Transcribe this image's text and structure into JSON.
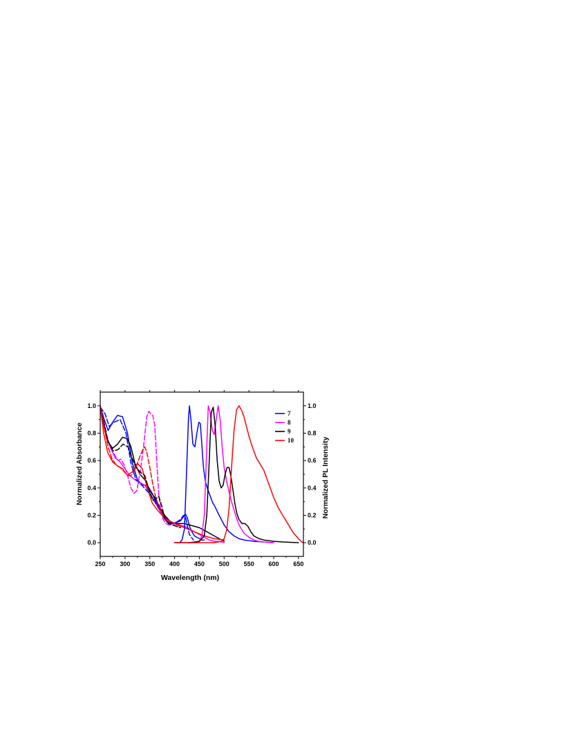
{
  "chart_data": {
    "type": "line",
    "xlabel": "Wavelength (nm)",
    "ylabel": "Normalized Absorbance",
    "y2label": "Normalized PL Intensity",
    "xlim": [
      250,
      660
    ],
    "ylim": [
      -0.1,
      1.1
    ],
    "x_ticks": [
      250,
      300,
      350,
      400,
      450,
      500,
      550,
      600,
      650
    ],
    "x_tick_labels": [
      "250",
      "300",
      "350",
      "400",
      "450",
      "500",
      "550",
      "600",
      "650"
    ],
    "y_ticks": [
      0.0,
      0.2,
      0.4,
      0.6,
      0.8,
      1.0
    ],
    "y_tick_labels": [
      "0.0",
      "0.2",
      "0.4",
      "0.6",
      "0.8",
      "1.0"
    ],
    "legend_position": "top-right",
    "grid": false,
    "series": [
      {
        "name": "7",
        "color": "#0000ff",
        "kind": "absorbance-solid",
        "x": [
          250,
          258,
          266,
          275,
          285,
          295,
          305,
          315,
          325,
          335,
          345,
          355,
          365,
          375,
          385,
          395,
          405,
          412,
          418,
          422,
          426,
          430,
          435,
          440,
          445,
          450,
          455,
          460
        ],
        "y": [
          1.0,
          0.9,
          0.82,
          0.88,
          0.93,
          0.92,
          0.8,
          0.58,
          0.46,
          0.42,
          0.42,
          0.36,
          0.28,
          0.2,
          0.15,
          0.14,
          0.15,
          0.16,
          0.19,
          0.21,
          0.18,
          0.12,
          0.08,
          0.05,
          0.04,
          0.03,
          0.02,
          0.02
        ]
      },
      {
        "name": "8",
        "color": "#ff00ff",
        "kind": "absorbance-solid",
        "x": [
          250,
          256,
          262,
          270,
          280,
          290,
          300,
          310,
          320,
          330,
          340,
          350,
          360,
          370,
          380,
          390,
          400,
          410,
          420,
          430,
          440,
          450,
          460,
          470,
          480,
          490,
          500
        ],
        "y": [
          1.0,
          0.9,
          0.79,
          0.7,
          0.62,
          0.59,
          0.54,
          0.49,
          0.46,
          0.44,
          0.42,
          0.36,
          0.3,
          0.24,
          0.18,
          0.15,
          0.14,
          0.13,
          0.12,
          0.1,
          0.08,
          0.06,
          0.04,
          0.02,
          0.01,
          0.01,
          0.0
        ]
      },
      {
        "name": "9",
        "color": "#000000",
        "kind": "absorbance-solid",
        "x": [
          250,
          257,
          265,
          275,
          285,
          295,
          305,
          312,
          320,
          330,
          340,
          350,
          360,
          370,
          380,
          390,
          400,
          410,
          420,
          430,
          440,
          450,
          460,
          470,
          480,
          490,
          500
        ],
        "y": [
          0.98,
          0.86,
          0.74,
          0.69,
          0.72,
          0.77,
          0.76,
          0.7,
          0.58,
          0.5,
          0.46,
          0.38,
          0.33,
          0.26,
          0.2,
          0.16,
          0.14,
          0.14,
          0.14,
          0.13,
          0.12,
          0.11,
          0.09,
          0.07,
          0.05,
          0.03,
          0.01
        ]
      },
      {
        "name": "10",
        "color": "#ff0000",
        "kind": "absorbance-solid",
        "x": [
          250,
          257,
          265,
          275,
          285,
          295,
          305,
          315,
          325,
          335,
          345,
          355,
          365,
          375,
          385,
          395,
          405,
          420,
          440,
          460,
          480,
          500
        ],
        "y": [
          0.99,
          0.8,
          0.66,
          0.59,
          0.56,
          0.54,
          0.49,
          0.52,
          0.58,
          0.54,
          0.4,
          0.29,
          0.24,
          0.2,
          0.17,
          0.15,
          0.13,
          0.11,
          0.08,
          0.05,
          0.03,
          0.02
        ]
      },
      {
        "name": "7-dashed",
        "color": "#0000ff",
        "kind": "absorbance-dashed",
        "x": [
          250,
          260,
          268,
          278,
          290,
          302,
          312,
          322,
          334,
          344,
          352,
          360,
          368,
          378,
          388,
          396,
          404,
          412,
          418,
          422,
          426,
          430,
          438
        ],
        "y": [
          0.99,
          0.94,
          0.85,
          0.88,
          0.9,
          0.8,
          0.58,
          0.46,
          0.42,
          0.38,
          0.35,
          0.3,
          0.25,
          0.2,
          0.15,
          0.14,
          0.15,
          0.17,
          0.2,
          0.19,
          0.12,
          0.06,
          0.02
        ]
      },
      {
        "name": "8-dashed",
        "color": "#ff00ff",
        "kind": "absorbance-dashed",
        "x": [
          250,
          258,
          266,
          276,
          286,
          292,
          298,
          306,
          312,
          318,
          324,
          332,
          338,
          344,
          348,
          352,
          356,
          360,
          364,
          368,
          372,
          376,
          382,
          390,
          398,
          404,
          412
        ],
        "y": [
          0.99,
          0.86,
          0.74,
          0.66,
          0.6,
          0.61,
          0.57,
          0.48,
          0.4,
          0.36,
          0.38,
          0.55,
          0.72,
          0.92,
          0.96,
          0.94,
          0.93,
          0.86,
          0.6,
          0.36,
          0.24,
          0.18,
          0.14,
          0.13,
          0.13,
          0.12,
          0.11
        ]
      },
      {
        "name": "9-dashed",
        "color": "#000000",
        "kind": "absorbance-dashed",
        "x": [
          250,
          258,
          266,
          276,
          286,
          296,
          306,
          314,
          322,
          330,
          336,
          340,
          344,
          350,
          356,
          362,
          368,
          374,
          380,
          388,
          396,
          404,
          412
        ],
        "y": [
          0.99,
          0.87,
          0.74,
          0.67,
          0.68,
          0.72,
          0.7,
          0.62,
          0.55,
          0.52,
          0.5,
          0.49,
          0.44,
          0.37,
          0.31,
          0.32,
          0.34,
          0.27,
          0.18,
          0.14,
          0.13,
          0.12,
          0.11
        ]
      },
      {
        "name": "10-dashed",
        "color": "#ff0000",
        "kind": "absorbance-dashed",
        "x": [
          250,
          258,
          266,
          274,
          282,
          290,
          298,
          306,
          312,
          318,
          324,
          330,
          336,
          340,
          344,
          350,
          356,
          362,
          370,
          378,
          386,
          394,
          402,
          410
        ],
        "y": [
          0.99,
          0.84,
          0.7,
          0.61,
          0.57,
          0.55,
          0.52,
          0.49,
          0.49,
          0.52,
          0.57,
          0.63,
          0.68,
          0.7,
          0.66,
          0.55,
          0.43,
          0.33,
          0.25,
          0.19,
          0.16,
          0.15,
          0.14,
          0.13
        ]
      },
      {
        "name": "7-PL",
        "color": "#0000ff",
        "kind": "emission",
        "x": [
          400,
          410,
          415,
          420,
          425,
          428,
          430,
          433,
          437,
          441,
          445,
          449,
          452,
          455,
          458,
          462,
          466,
          470,
          476,
          482,
          490,
          500,
          510,
          520,
          530,
          540,
          550,
          560,
          570,
          580,
          590,
          600
        ],
        "y": [
          0.0,
          0.0,
          0.02,
          0.1,
          0.6,
          0.9,
          1.0,
          0.9,
          0.72,
          0.7,
          0.8,
          0.88,
          0.87,
          0.72,
          0.56,
          0.45,
          0.4,
          0.36,
          0.3,
          0.26,
          0.2,
          0.13,
          0.08,
          0.05,
          0.03,
          0.02,
          0.015,
          0.01,
          0.008,
          0.005,
          0.003,
          0.0
        ]
      },
      {
        "name": "8-PL",
        "color": "#ff00ff",
        "kind": "emission",
        "x": [
          400,
          420,
          440,
          450,
          455,
          460,
          464,
          468,
          472,
          476,
          480,
          484,
          488,
          492,
          496,
          500,
          505,
          510,
          515,
          520,
          525,
          530,
          540,
          550,
          560,
          570,
          580,
          590,
          600
        ],
        "y": [
          0.0,
          0.0,
          0.0,
          0.01,
          0.05,
          0.2,
          0.6,
          1.0,
          0.95,
          0.82,
          0.79,
          0.9,
          1.0,
          0.9,
          0.7,
          0.55,
          0.45,
          0.37,
          0.3,
          0.24,
          0.18,
          0.13,
          0.07,
          0.04,
          0.02,
          0.01,
          0.005,
          0.002,
          0.0
        ]
      },
      {
        "name": "9-PL",
        "color": "#000000",
        "kind": "emission",
        "x": [
          400,
          430,
          450,
          460,
          465,
          470,
          474,
          478,
          482,
          486,
          490,
          494,
          498,
          502,
          506,
          510,
          514,
          518,
          522,
          526,
          530,
          536,
          542,
          548,
          554,
          560,
          570,
          580,
          600,
          620,
          650
        ],
        "y": [
          0.0,
          0.0,
          0.01,
          0.05,
          0.2,
          0.6,
          0.95,
          0.99,
          0.85,
          0.6,
          0.45,
          0.4,
          0.42,
          0.5,
          0.55,
          0.55,
          0.48,
          0.38,
          0.28,
          0.21,
          0.17,
          0.14,
          0.14,
          0.12,
          0.08,
          0.05,
          0.03,
          0.02,
          0.01,
          0.005,
          0.0
        ]
      },
      {
        "name": "10-PL",
        "color": "#ff0000",
        "kind": "emission",
        "x": [
          400,
          450,
          480,
          495,
          500,
          505,
          510,
          515,
          520,
          525,
          530,
          535,
          540,
          545,
          550,
          555,
          560,
          565,
          570,
          575,
          580,
          585,
          590,
          595,
          600,
          605,
          610,
          615,
          620,
          625,
          630,
          635,
          640,
          645,
          650,
          655,
          660
        ],
        "y": [
          0.0,
          0.0,
          0.0,
          0.01,
          0.03,
          0.09,
          0.25,
          0.55,
          0.82,
          0.97,
          1.0,
          0.97,
          0.92,
          0.85,
          0.78,
          0.72,
          0.67,
          0.62,
          0.59,
          0.56,
          0.53,
          0.48,
          0.43,
          0.38,
          0.33,
          0.29,
          0.25,
          0.22,
          0.19,
          0.16,
          0.13,
          0.1,
          0.07,
          0.05,
          0.03,
          0.01,
          0.0
        ]
      }
    ],
    "legend": [
      {
        "label": "7",
        "color": "#0000ff"
      },
      {
        "label": "8",
        "color": "#ff00ff"
      },
      {
        "label": "9",
        "color": "#000000"
      },
      {
        "label": "10",
        "color": "#ff0000"
      }
    ]
  }
}
